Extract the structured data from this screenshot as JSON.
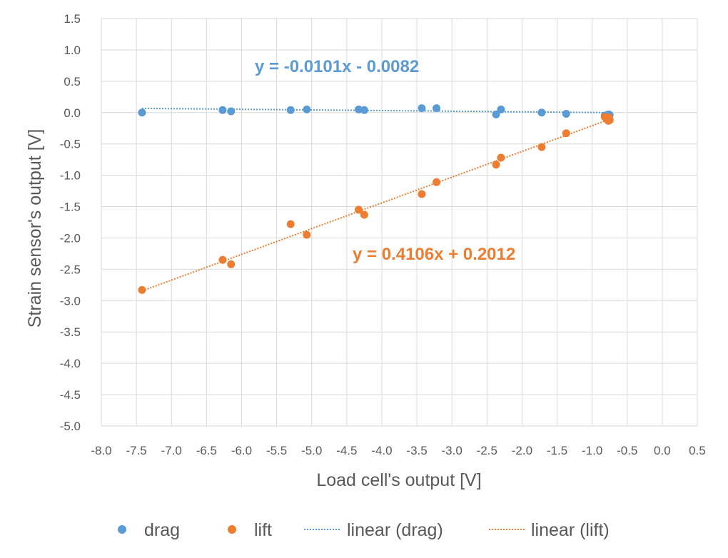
{
  "chart_data": {
    "type": "scatter",
    "xlabel": "Load cell's output  [V]",
    "ylabel": "Strain sensor's output  [V]",
    "xlim": [
      -8.0,
      0.5
    ],
    "ylim": [
      -5.0,
      1.5
    ],
    "x_ticks": [
      "-8.0",
      "-7.5",
      "-7.0",
      "-6.5",
      "-6.0",
      "-5.5",
      "-5.0",
      "-4.5",
      "-4.0",
      "-3.5",
      "-3.0",
      "-2.5",
      "-2.0",
      "-1.5",
      "-1.0",
      "-0.5",
      "0.0",
      "0.5"
    ],
    "y_ticks": [
      "1.5",
      "1.0",
      "0.5",
      "0.0",
      "-0.5",
      "-1.0",
      "-1.5",
      "-2.0",
      "-2.5",
      "-3.0",
      "-3.5",
      "-4.0",
      "-4.5",
      "-5.0"
    ],
    "grid": true,
    "legend_position": "bottom",
    "series": [
      {
        "name": "drag",
        "color": "#5B9BD5",
        "points": [
          [
            -7.42,
            0.0
          ],
          [
            -6.27,
            0.04
          ],
          [
            -6.15,
            0.02
          ],
          [
            -5.3,
            0.04
          ],
          [
            -5.07,
            0.05
          ],
          [
            -4.33,
            0.05
          ],
          [
            -4.25,
            0.04
          ],
          [
            -3.43,
            0.07
          ],
          [
            -3.22,
            0.07
          ],
          [
            -2.37,
            -0.03
          ],
          [
            -2.3,
            0.05
          ],
          [
            -1.72,
            0.0
          ],
          [
            -1.37,
            -0.02
          ],
          [
            -0.82,
            -0.05
          ],
          [
            -0.79,
            -0.04
          ],
          [
            -0.77,
            -0.05
          ],
          [
            -0.76,
            -0.03
          ],
          [
            -0.75,
            -0.04
          ]
        ]
      },
      {
        "name": "lift",
        "color": "#ED7D31",
        "points": [
          [
            -7.42,
            -2.83
          ],
          [
            -6.27,
            -2.35
          ],
          [
            -6.15,
            -2.42
          ],
          [
            -5.3,
            -1.78
          ],
          [
            -5.07,
            -1.95
          ],
          [
            -4.33,
            -1.55
          ],
          [
            -4.25,
            -1.63
          ],
          [
            -3.43,
            -1.3
          ],
          [
            -3.22,
            -1.11
          ],
          [
            -2.37,
            -0.83
          ],
          [
            -2.3,
            -0.72
          ],
          [
            -1.72,
            -0.55
          ],
          [
            -1.37,
            -0.33
          ],
          [
            -0.82,
            -0.07
          ],
          [
            -0.79,
            -0.1
          ],
          [
            -0.77,
            -0.13
          ],
          [
            -0.76,
            -0.08
          ],
          [
            -0.75,
            -0.12
          ]
        ]
      }
    ],
    "trendlines": [
      {
        "name": "linear (drag)",
        "color": "#5B9BD5",
        "slope": -0.0101,
        "intercept": -0.0082,
        "x_range": [
          -7.42,
          -0.75
        ],
        "equation": "y = -0.0101x - 0.0082"
      },
      {
        "name": "linear (lift)",
        "color": "#ED7D31",
        "slope": 0.4106,
        "intercept": 0.2012,
        "x_range": [
          -7.42,
          -0.75
        ],
        "equation": "y = 0.4106x + 0.2012"
      }
    ]
  }
}
